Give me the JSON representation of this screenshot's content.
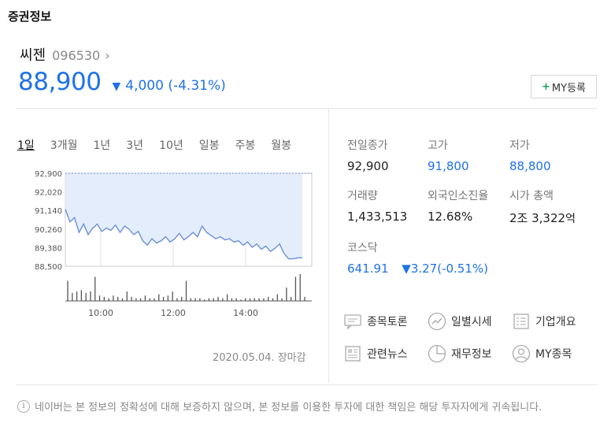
{
  "section_title": "증권정보",
  "stock": {
    "name": "씨젠",
    "code": "096530",
    "price": "88,900",
    "change": "4,000",
    "change_pct": "(-4.31%)",
    "direction": "down"
  },
  "my_button_label": "MY등록",
  "period_tabs": [
    "1일",
    "3개월",
    "1년",
    "3년",
    "10년",
    "일봉",
    "주봉",
    "월봉"
  ],
  "active_period": "1일",
  "chart_data": {
    "type": "line",
    "y_ticks": [
      "92,900",
      "92,020",
      "91,140",
      "90,260",
      "89,380",
      "88,500"
    ],
    "ylim": [
      88500,
      92900
    ],
    "x_ticks": [
      "10:00",
      "12:00",
      "14:00"
    ],
    "prev_close": 92900,
    "series": [
      {
        "values": [
          91200,
          90600,
          90800,
          90100,
          90500,
          90000,
          90300,
          90500,
          90150,
          90300,
          90200,
          90450,
          90100,
          90400,
          90250,
          90000,
          90150,
          89700,
          89500,
          89800,
          89600,
          89700,
          89900,
          89650,
          89800,
          90050,
          89750,
          89900,
          90100,
          89900,
          90400,
          90100,
          89950,
          89800,
          89900,
          89750,
          89800,
          89650,
          89700,
          89500,
          89650,
          89400,
          89550,
          89300,
          89450,
          89200,
          89350,
          89550,
          89100,
          88850,
          88850,
          88900,
          88900
        ]
      }
    ],
    "volume": [
      0.75,
      0.3,
      0.35,
      0.4,
      0.3,
      0.35,
      0.9,
      0.2,
      0.15,
      0.1,
      0.2,
      0.15,
      0.1,
      0.35,
      0.15,
      0.1,
      0.1,
      0.2,
      0.1,
      0.1,
      0.25,
      0.15,
      0.2,
      0.35,
      0.1,
      0.15,
      0.75,
      0.1,
      0.1,
      0.1,
      0.05,
      0.1,
      0.1,
      0.15,
      0.1,
      0.25,
      0.1,
      0.1,
      0.05,
      0.1,
      0.1,
      0.1,
      0.1,
      0.1,
      0.15,
      0.1,
      0.25,
      0.1,
      0.5,
      0.15,
      0.9,
      1.0,
      0.15
    ]
  },
  "chart_date": "2020.05.04. 장마감",
  "info": {
    "prev_close": {
      "label": "전일종가",
      "value": "92,900"
    },
    "high": {
      "label": "고가",
      "value": "91,800"
    },
    "low": {
      "label": "저가",
      "value": "88,800"
    },
    "volume": {
      "label": "거래량",
      "value": "1,433,513"
    },
    "foreign_ratio": {
      "label": "외국인소진율",
      "value": "12.68%"
    },
    "market_cap": {
      "label": "시가 총액",
      "value_prefix": "2조 3,322",
      "unit": "억"
    },
    "index": {
      "label": "코스닥",
      "value": "641.91",
      "change": "▼3.27",
      "change_pct": "(-0.51%)"
    }
  },
  "quick_links": [
    "종목토론",
    "일별시세",
    "기업개요",
    "관련뉴스",
    "재무정보",
    "MY종목"
  ],
  "disclaimer": "네이버는 본 정보의 정확성에 대해 보증하지 않으며, 본 정보를 이용한 투자에 대한 책임은 해당 투자자에게 귀속됩니다.",
  "colors": {
    "down": "#1e72e8",
    "line": "#6d8fd6",
    "fill": "#e3edfb",
    "add": "#19a15f"
  }
}
